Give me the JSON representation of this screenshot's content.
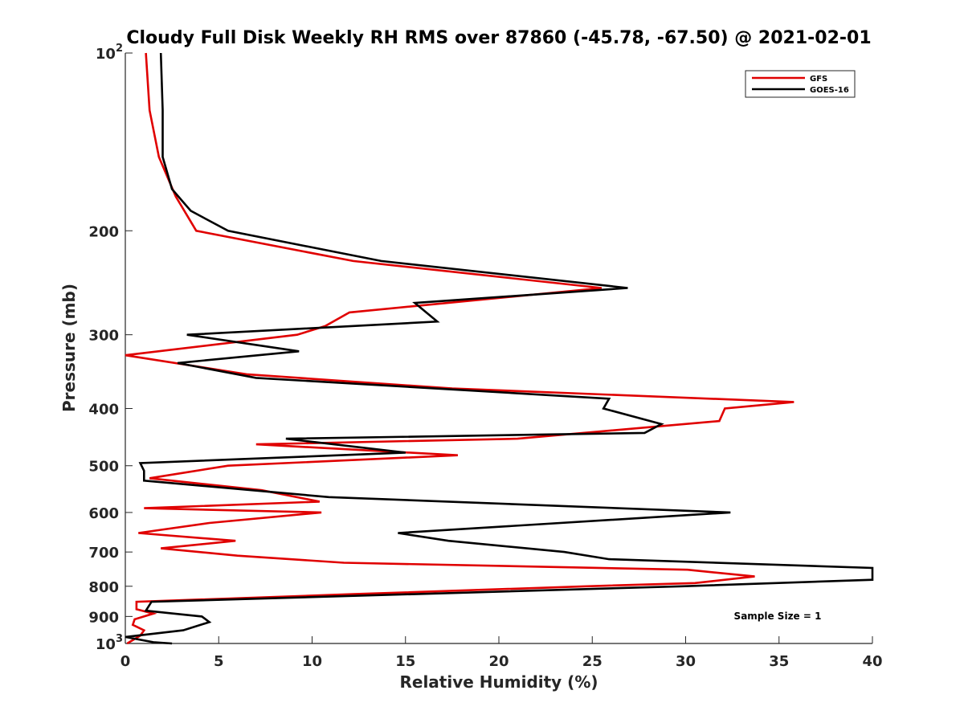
{
  "chart_data": {
    "type": "line",
    "title": "Cloudy Full Disk Weekly RH RMS over 87860 (-45.78, -67.50) @ 2021-02-01",
    "xlabel": "Relative Humidity (%)",
    "ylabel": "Pressure (mb)",
    "xlim": [
      0,
      40
    ],
    "ylim": [
      100,
      1000
    ],
    "yscale": "log",
    "y_reversed": true,
    "grid": false,
    "legend_position": "top-right",
    "x_ticks": [
      0,
      5,
      10,
      15,
      20,
      25,
      30,
      35,
      40
    ],
    "y_ticks": [
      {
        "value": 100,
        "label": "10",
        "exp": "2"
      },
      {
        "value": 200,
        "label": "200"
      },
      {
        "value": 300,
        "label": "300"
      },
      {
        "value": 400,
        "label": "400"
      },
      {
        "value": 500,
        "label": "500"
      },
      {
        "value": 600,
        "label": "600"
      },
      {
        "value": 700,
        "label": "700"
      },
      {
        "value": 800,
        "label": "800"
      },
      {
        "value": 900,
        "label": "900"
      },
      {
        "value": 1000,
        "label": "10",
        "exp": "3"
      }
    ],
    "annotation": "Sample Size = 1",
    "series": [
      {
        "name": "GFS",
        "color": "#e00000",
        "points": [
          [
            1.1,
            100
          ],
          [
            1.3,
            125
          ],
          [
            1.8,
            150
          ],
          [
            2.7,
            175
          ],
          [
            3.8,
            200
          ],
          [
            12.2,
            225
          ],
          [
            25.5,
            250
          ],
          [
            12.0,
            275
          ],
          [
            10.7,
            290
          ],
          [
            9.2,
            300
          ],
          [
            0.0,
            325
          ],
          [
            6.5,
            350
          ],
          [
            17.5,
            370
          ],
          [
            35.8,
            390
          ],
          [
            32.1,
            400
          ],
          [
            31.8,
            420
          ],
          [
            21.0,
            450
          ],
          [
            7.0,
            460
          ],
          [
            17.8,
            480
          ],
          [
            5.5,
            500
          ],
          [
            1.3,
            525
          ],
          [
            7.3,
            550
          ],
          [
            10.4,
            575
          ],
          [
            1.0,
            590
          ],
          [
            10.5,
            600
          ],
          [
            4.5,
            625
          ],
          [
            0.7,
            650
          ],
          [
            5.9,
            670
          ],
          [
            1.9,
            690
          ],
          [
            6.0,
            710
          ],
          [
            11.7,
            730
          ],
          [
            30.1,
            750
          ],
          [
            33.7,
            770
          ],
          [
            30.5,
            790
          ],
          [
            24.7,
            800
          ],
          [
            12.2,
            825
          ],
          [
            0.6,
            850
          ],
          [
            0.6,
            875
          ],
          [
            1.5,
            890
          ],
          [
            0.5,
            910
          ],
          [
            0.4,
            930
          ],
          [
            1.0,
            950
          ],
          [
            0.8,
            970
          ],
          [
            0.1,
            1000
          ]
        ]
      },
      {
        "name": "GOES-16",
        "color": "#000000",
        "points": [
          [
            1.9,
            100
          ],
          [
            2.0,
            125
          ],
          [
            2.0,
            150
          ],
          [
            2.5,
            170
          ],
          [
            3.5,
            185
          ],
          [
            5.5,
            200
          ],
          [
            13.7,
            225
          ],
          [
            26.9,
            250
          ],
          [
            15.5,
            265
          ],
          [
            16.7,
            285
          ],
          [
            3.3,
            300
          ],
          [
            9.3,
            320
          ],
          [
            2.8,
            335
          ],
          [
            7.0,
            355
          ],
          [
            25.9,
            385
          ],
          [
            25.6,
            400
          ],
          [
            28.7,
            425
          ],
          [
            27.8,
            440
          ],
          [
            8.6,
            450
          ],
          [
            15.0,
            475
          ],
          [
            0.8,
            495
          ],
          [
            1.0,
            510
          ],
          [
            1.0,
            530
          ],
          [
            10.9,
            565
          ],
          [
            32.4,
            600
          ],
          [
            14.6,
            650
          ],
          [
            17.3,
            670
          ],
          [
            23.5,
            700
          ],
          [
            25.9,
            720
          ],
          [
            40.0,
            745
          ],
          [
            40.0,
            780
          ],
          [
            29.8,
            800
          ],
          [
            1.4,
            850
          ],
          [
            1.1,
            880
          ],
          [
            4.1,
            900
          ],
          [
            4.5,
            920
          ],
          [
            3.1,
            950
          ],
          [
            0.0,
            975
          ],
          [
            1.5,
            995
          ],
          [
            2.5,
            1000
          ]
        ]
      }
    ]
  }
}
